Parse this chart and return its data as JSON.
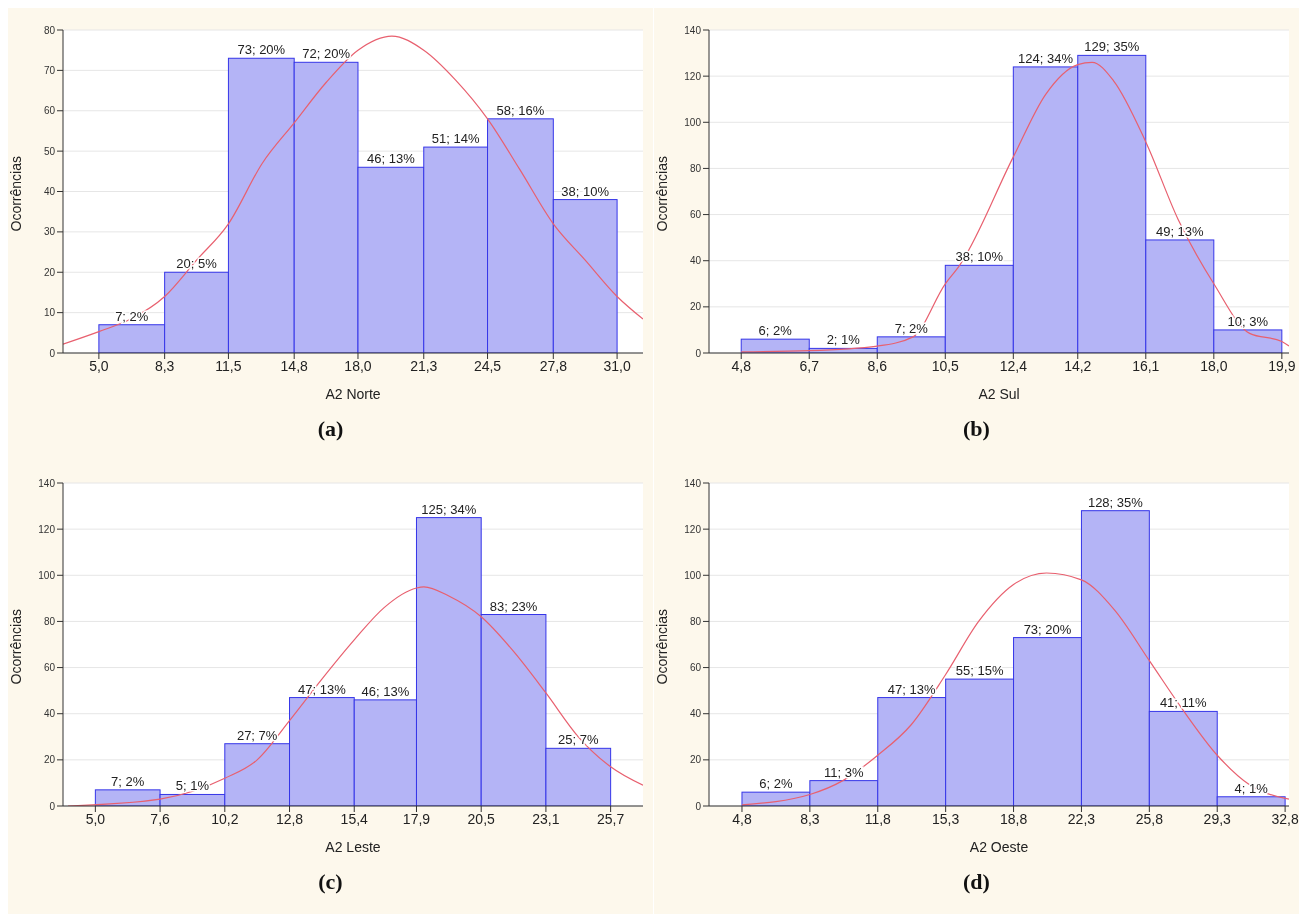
{
  "chart_data": [
    {
      "type": "histogram",
      "xlabel": "A2 Norte",
      "ylabel": "Ocorrências",
      "annotations": [
        "(a)"
      ],
      "grid": "y",
      "color": "#b4b4f6",
      "bins": [
        5.0,
        8.3,
        11.5,
        14.8,
        18.0,
        21.3,
        24.5,
        27.8,
        31.0
      ],
      "values": [
        7,
        20,
        73,
        72,
        46,
        51,
        58,
        38
      ],
      "value_labels": [
        "7; 2%",
        "20; 5%",
        "73; 20%",
        "72; 20%",
        "46; 13%",
        "51; 14%",
        "58; 16%",
        "38; 10%"
      ],
      "xlim": [
        3.2,
        32.3
      ],
      "xticks": [
        {
          "value": 5.0,
          "label": "5,0"
        },
        {
          "value": 8.3,
          "label": "8,3"
        },
        {
          "value": 11.5,
          "label": "11,5"
        },
        {
          "value": 14.8,
          "label": "14,8"
        },
        {
          "value": 18.0,
          "label": "18,0"
        },
        {
          "value": 21.3,
          "label": "21,3"
        },
        {
          "value": 24.5,
          "label": "24,5"
        },
        {
          "value": 27.8,
          "label": "27,8"
        },
        {
          "value": 31.0,
          "label": "31,0"
        }
      ],
      "ylim": [
        0,
        80
      ],
      "yticks": [
        0,
        10,
        20,
        30,
        40,
        50,
        60,
        70,
        80
      ],
      "series": [
        {
          "type": "line",
          "color": "#e8606f",
          "x": [
            3.2,
            5.0,
            6.6,
            8.3,
            9.9,
            11.5,
            13.2,
            14.8,
            16.4,
            18.0,
            19.7,
            21.3,
            22.9,
            24.5,
            26.1,
            27.8,
            29.4,
            31.0,
            32.3
          ],
          "values": [
            2.2,
            5.3,
            8.4,
            14,
            23,
            32,
            47,
            57,
            67,
            75,
            78.5,
            75,
            67.6,
            58,
            45.6,
            32,
            23,
            14,
            8.4
          ]
        }
      ]
    },
    {
      "type": "histogram",
      "xlabel": "A2 Sul",
      "ylabel": "Ocorrências",
      "annotations": [
        "(b)"
      ],
      "grid": "y",
      "color": "#b4b4f6",
      "bins": [
        4.8,
        6.7,
        8.6,
        10.5,
        12.4,
        14.2,
        16.1,
        18.0,
        19.9
      ],
      "values": [
        6,
        2,
        7,
        38,
        124,
        129,
        49,
        10
      ],
      "value_labels": [
        "6; 2%",
        "2; 1%",
        "7; 2%",
        "38; 10%",
        "124; 34%",
        "129; 35%",
        "49; 13%",
        "10; 3%"
      ],
      "xlim": [
        3.9,
        20.1
      ],
      "xticks": [
        {
          "value": 4.8,
          "label": "4,8"
        },
        {
          "value": 6.7,
          "label": "6,7"
        },
        {
          "value": 8.6,
          "label": "8,6"
        },
        {
          "value": 10.5,
          "label": "10,5"
        },
        {
          "value": 12.4,
          "label": "12,4"
        },
        {
          "value": 14.2,
          "label": "14,2"
        },
        {
          "value": 16.1,
          "label": "16,1"
        },
        {
          "value": 18.0,
          "label": "18,0"
        },
        {
          "value": 19.9,
          "label": "19,9"
        }
      ],
      "ylim": [
        0,
        140
      ],
      "yticks": [
        0,
        20,
        40,
        60,
        80,
        100,
        120,
        140
      ],
      "series": [
        {
          "type": "line",
          "color": "#e8606f",
          "x": [
            4.8,
            6.7,
            8.6,
            9.6,
            10.5,
            10.9,
            12.4,
            13.3,
            14.2,
            14.6,
            15.2,
            16.1,
            17.0,
            18.0,
            19.0,
            19.9,
            20.1
          ],
          "values": [
            0.5,
            1,
            3,
            7,
            30,
            38,
            85,
            112,
            125,
            126,
            118,
            91.5,
            58,
            30,
            8.5,
            5,
            3
          ]
        }
      ]
    },
    {
      "type": "histogram",
      "xlabel": "A2 Leste",
      "ylabel": "Ocorrências",
      "annotations": [
        "(c)"
      ],
      "grid": "y",
      "color": "#b4b4f6",
      "bins": [
        5.0,
        7.6,
        10.2,
        12.8,
        15.4,
        17.9,
        20.5,
        23.1,
        25.7
      ],
      "values": [
        7,
        5,
        27,
        47,
        46,
        125,
        83,
        25
      ],
      "value_labels": [
        "7; 2%",
        "5; 1%",
        "27; 7%",
        "47; 13%",
        "46; 13%",
        "125; 34%",
        "83; 23%",
        "25; 7%"
      ],
      "xlim": [
        3.7,
        27.0
      ],
      "xticks": [
        {
          "value": 5.0,
          "label": "5,0"
        },
        {
          "value": 7.6,
          "label": "7,6"
        },
        {
          "value": 10.2,
          "label": "10,2"
        },
        {
          "value": 12.8,
          "label": "12,8"
        },
        {
          "value": 15.4,
          "label": "15,4"
        },
        {
          "value": 17.9,
          "label": "17,9"
        },
        {
          "value": 20.5,
          "label": "20,5"
        },
        {
          "value": 23.1,
          "label": "23,1"
        },
        {
          "value": 25.7,
          "label": "25,7"
        }
      ],
      "ylim": [
        0,
        140
      ],
      "yticks": [
        0,
        20,
        40,
        60,
        80,
        100,
        120,
        140
      ],
      "series": [
        {
          "type": "line",
          "color": "#e8606f",
          "x": [
            3.9,
            7.6,
            10.2,
            11.5,
            12.8,
            14.1,
            15.4,
            16.6,
            17.9,
            18.2,
            19.2,
            20.5,
            21.8,
            23.1,
            24.4,
            25.7,
            27.0
          ],
          "values": [
            0,
            3,
            12,
            20,
            37,
            55,
            72,
            86,
            94.5,
            95,
            91,
            82,
            67,
            49,
            30,
            17,
            9
          ]
        }
      ]
    },
    {
      "type": "histogram",
      "xlabel": "A2 Oeste",
      "ylabel": "Ocorrências",
      "annotations": [
        "(d)"
      ],
      "grid": "y",
      "color": "#b4b4f6",
      "bins": [
        4.8,
        8.3,
        11.8,
        15.3,
        18.8,
        22.3,
        25.8,
        29.3,
        32.8
      ],
      "values": [
        6,
        11,
        47,
        55,
        73,
        128,
        41,
        4
      ],
      "value_labels": [
        "6; 2%",
        "11; 3%",
        "47; 13%",
        "55; 15%",
        "73; 20%",
        "128; 35%",
        "41; 11%",
        "4; 1%"
      ],
      "xlim": [
        3.1,
        33.0
      ],
      "xticks": [
        {
          "value": 4.8,
          "label": "4,8"
        },
        {
          "value": 8.3,
          "label": "8,3"
        },
        {
          "value": 11.8,
          "label": "11,8"
        },
        {
          "value": 15.3,
          "label": "15,3"
        },
        {
          "value": 18.8,
          "label": "18,8"
        },
        {
          "value": 22.3,
          "label": "22,3"
        },
        {
          "value": 25.8,
          "label": "25,8"
        },
        {
          "value": 29.3,
          "label": "29,3"
        },
        {
          "value": 32.8,
          "label": "32,8"
        }
      ],
      "ylim": [
        0,
        140
      ],
      "yticks": [
        0,
        20,
        40,
        60,
        80,
        100,
        120,
        140
      ],
      "series": [
        {
          "type": "line",
          "color": "#e8606f",
          "x": [
            4.8,
            8.3,
            10.0,
            11.8,
            13.5,
            15.3,
            17.0,
            18.8,
            20.5,
            22.3,
            24.0,
            25.8,
            27.5,
            29.3,
            31.0,
            32.8,
            33.0
          ],
          "values": [
            0.5,
            5,
            11,
            22,
            35,
            57,
            80,
            96,
            101,
            98,
            85,
            63,
            42,
            22,
            9,
            3.3,
            3
          ]
        }
      ]
    }
  ]
}
